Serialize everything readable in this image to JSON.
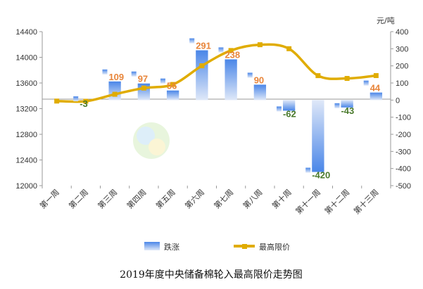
{
  "chart_data": {
    "type": "bar+line",
    "title": "2019年度中央储备棉轮入最高限价走势图",
    "unit_right": "元/吨",
    "categories": [
      "第一周",
      "第二周",
      "第三周",
      "第四周",
      "第五周",
      "第六周",
      "第七周",
      "第八周",
      "第十周",
      "第十一周",
      "第十二周",
      "第十三周"
    ],
    "series": [
      {
        "name": "跌涨",
        "type": "bar",
        "axis": "right",
        "values": [
          0,
          -3,
          109,
          97,
          56,
          291,
          238,
          90,
          -62,
          -420,
          -43,
          44
        ]
      },
      {
        "name": "最高限价",
        "type": "line",
        "axis": "left",
        "values": [
          13318,
          13315,
          13424,
          13521,
          13577,
          13868,
          14106,
          14196,
          14134,
          13714,
          13671,
          13715
        ]
      }
    ],
    "data_labels": [
      "",
      "-3",
      "109",
      "97",
      "56",
      "291",
      "238",
      "90",
      "-62",
      "-420",
      "-43",
      "44"
    ],
    "label_colors": [
      "",
      "#4a7a2c",
      "#e8853a",
      "#e8853a",
      "#e8853a",
      "#e8853a",
      "#e8853a",
      "#e8853a",
      "#4a7a2c",
      "#4a7a2c",
      "#4a7a2c",
      "#e8853a"
    ],
    "y_left": {
      "ylim": [
        12000,
        14400
      ],
      "ticks": [
        12000,
        12400,
        12800,
        13200,
        13600,
        14000,
        14400
      ]
    },
    "y_right": {
      "ylim": [
        -500,
        400
      ],
      "ticks": [
        -500,
        -400,
        -300,
        -200,
        -100,
        0,
        100,
        200,
        300,
        400
      ]
    },
    "legend": {
      "position": "bottom",
      "items": [
        "跌涨",
        "最高限价"
      ]
    },
    "colors": {
      "line": "#e0ac00",
      "bar_top": "#c9d8f3",
      "bar_bottom": "#4a86e8",
      "axis": "#9a9a9a",
      "grid": "none"
    }
  }
}
